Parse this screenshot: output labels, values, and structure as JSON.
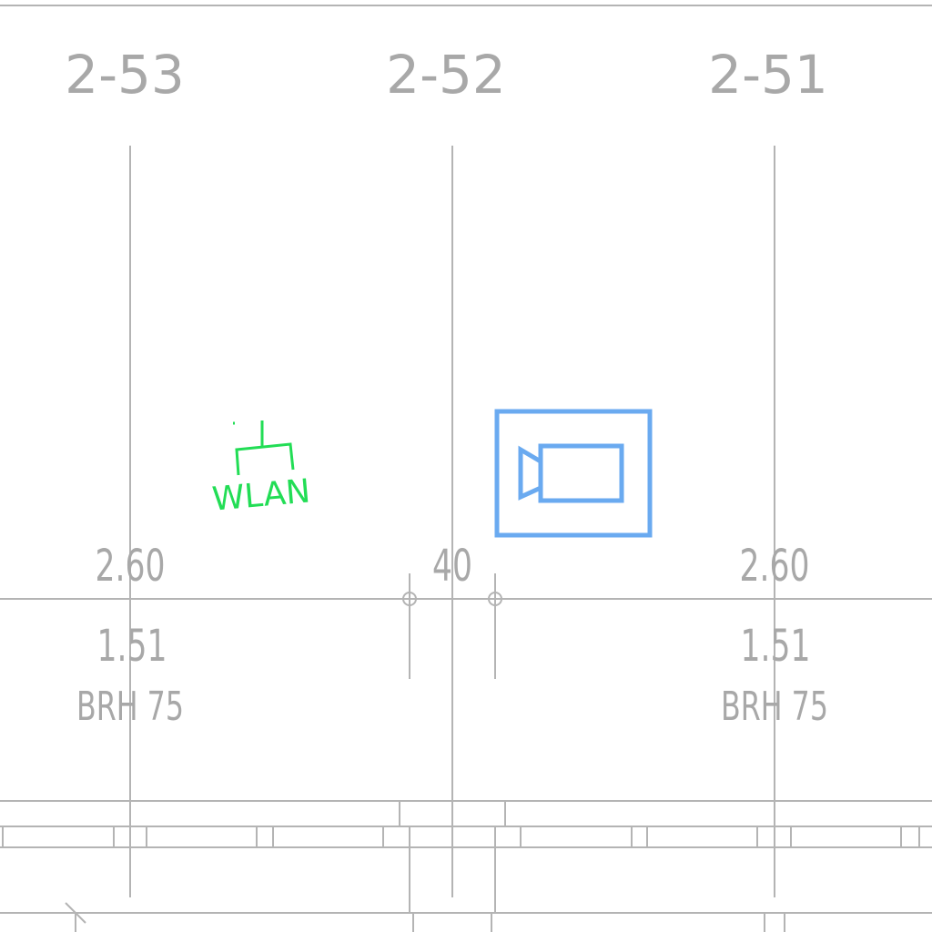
{
  "axis_labels": [
    "2-53",
    "2-52",
    "2-51"
  ],
  "dimensions": {
    "left_top": "2.60",
    "left_bottom": "1.51",
    "left_brh": "BRH 75",
    "center": "40",
    "right_top": "2.60",
    "right_bottom": "1.51",
    "right_brh": "BRH 75"
  },
  "symbols": {
    "wlan_label": "WLAN",
    "wlan_icon": "wlan-access-point-icon",
    "camera_icon": "video-camera-icon"
  },
  "colors": {
    "linework": "#b4b4b4",
    "text": "#a8a8a8",
    "wlan": "#22dd55",
    "camera": "#6aaaf0"
  }
}
